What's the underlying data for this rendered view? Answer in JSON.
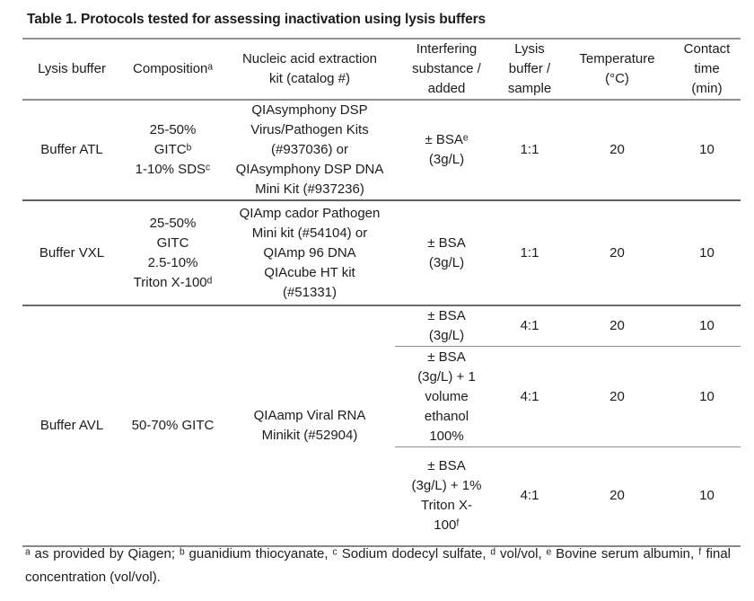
{
  "title": "Table 1. Protocols tested for assessing inactivation using lysis buffers",
  "columns": [
    "Lysis buffer",
    "Compositionᵃ",
    "Nucleic acid extraction\nkit (catalog #)",
    "Interfering\nsubstance /\nadded",
    "Lysis\nbuffer /\nsample",
    "Temperature\n(°C)",
    "Contact\ntime\n(min)"
  ],
  "rows": {
    "atl": {
      "buffer": "Buffer ATL",
      "composition": "25-50%\nGITCᵇ\n1-10% SDSᶜ",
      "kit": "QIAsymphony DSP\nVirus/Pathogen Kits\n(#937036) or\nQIAsymphony DSP DNA\nMini Kit (#937236)",
      "interfering": "± BSAᵉ\n(3g/L)",
      "ratio": "1:1",
      "temperature": "20",
      "contact_time": "10"
    },
    "vxl": {
      "buffer": "Buffer VXL",
      "composition": "25-50%\nGITC\n2.5-10%\nTriton X-100ᵈ",
      "kit": "QIAmp cador Pathogen\nMini kit (#54104) or\nQIAmp 96 DNA\nQIAcube HT kit\n(#51331)",
      "interfering": "± BSA\n(3g/L)",
      "ratio": "1:1",
      "temperature": "20",
      "contact_time": "10"
    },
    "avl": {
      "buffer": "Buffer AVL",
      "composition": "50-70% GITC",
      "kit": "QIAamp Viral RNA\nMinikit (#52904)",
      "conditions": [
        {
          "interfering": "± BSA\n(3g/L)",
          "ratio": "4:1",
          "temperature": "20",
          "contact_time": "10"
        },
        {
          "interfering": "± BSA\n(3g/L) + 1\nvolume\nethanol\n100%",
          "ratio": "4:1",
          "temperature": "20",
          "contact_time": "10"
        },
        {
          "interfering": "± BSA\n(3g/L) + 1%\nTriton X-\n100ᶠ",
          "ratio": "4:1",
          "temperature": "20",
          "contact_time": "10"
        }
      ]
    }
  },
  "footnote": {
    "text": "ᵃ as provided by Qiagen; ᵇ guanidium thiocyanate, ᶜ Sodium dodecyl sulfate, ᵈ vol/vol, ᵉ Bovine serum albumin, ᶠ final concentration (vol/vol)."
  }
}
